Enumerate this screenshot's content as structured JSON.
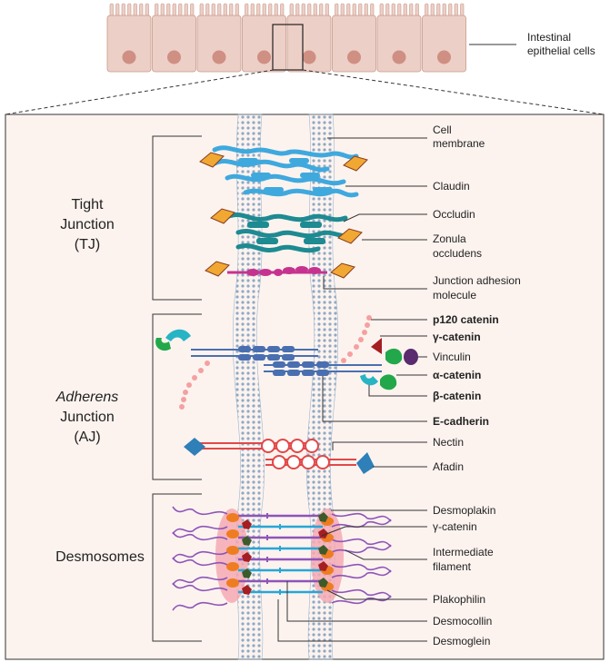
{
  "epithelium_label_line1": "Intestinal",
  "epithelium_label_line2": "epithelial cells",
  "sections": {
    "tight_junction": {
      "line1": "Tight",
      "line2": "Junction",
      "line3": "(TJ)"
    },
    "adherens_junction": {
      "line1": "Adherens",
      "line2": "Junction",
      "line3": "(AJ)"
    },
    "desmosomes": {
      "line1": "Desmosomes"
    }
  },
  "labels": {
    "cell_membrane_1": "Cell",
    "cell_membrane_2": "membrane",
    "claudin": "Claudin",
    "occludin": "Occludin",
    "zonula_1": "Zonula",
    "zonula_2": "occludens",
    "jam_1": "Junction adhesion",
    "jam_2": "molecule",
    "p120": "p120 catenin",
    "gamma_catenin_aj": "γ-catenin",
    "vinculin": "Vinculin",
    "alpha_catenin": "α-catenin",
    "beta_catenin": "β-catenin",
    "e_cadherin": "E-cadherin",
    "nectin": "Nectin",
    "afadin": "Afadin",
    "desmoplakin": "Desmoplakin",
    "gamma_catenin_ds": "γ-catenin",
    "if_1": "Intermediate",
    "if_2": "filament",
    "plakophilin": "Plakophilin",
    "desmocollin": "Desmocollin",
    "desmoglein": "Desmoglein"
  },
  "colors": {
    "cell_fill": "#eccfc6",
    "cell_stroke": "#c99a8c",
    "nucleus": "#cf8f82",
    "panel_bg": "#fcf3ef",
    "membrane": "#9fb7cf",
    "claudin": "#3fa9de",
    "occludin": "#1e8a91",
    "jam": "#c6338f",
    "orange": "#f0a832",
    "cadherin": "#4a6fb0",
    "nectin": "#e24848",
    "afadin": "#2f7fb8",
    "p120": "#f5a0a0",
    "alpha": "#22a84a",
    "beta": "#27b4c4",
    "vinculin": "#a51e22",
    "desmo_purple": "#8e55b8",
    "desmo_orange": "#ee7d22",
    "desmo_green": "#3d5b2a",
    "plaque": "#f4a9b3"
  }
}
